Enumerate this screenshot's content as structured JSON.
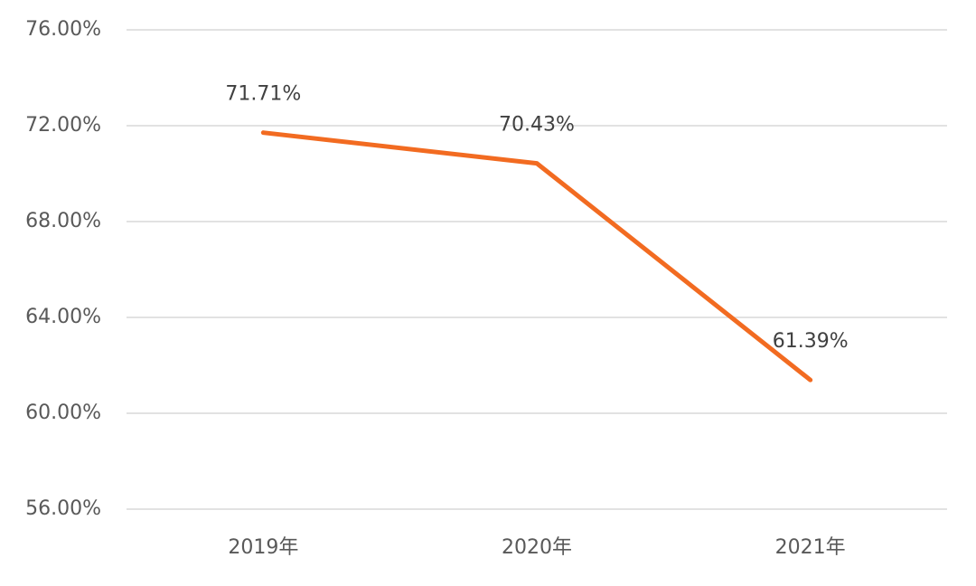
{
  "chart_data": {
    "type": "line",
    "categories": [
      "2019年",
      "2020年",
      "2021年"
    ],
    "series": [
      {
        "name": "rate",
        "color": "#f26b21",
        "values": [
          71.71,
          70.43,
          61.39
        ],
        "value_labels": [
          "71.71%",
          "70.43%",
          "61.39%"
        ]
      }
    ],
    "ylim": [
      56,
      76
    ],
    "yticks": [
      {
        "value": 56,
        "label": "56.00%"
      },
      {
        "value": 60,
        "label": "60.00%"
      },
      {
        "value": 64,
        "label": "64.00%"
      },
      {
        "value": 68,
        "label": "68.00%"
      },
      {
        "value": 72,
        "label": "72.00%"
      },
      {
        "value": 76,
        "label": "76.00%"
      }
    ],
    "grid": true
  }
}
